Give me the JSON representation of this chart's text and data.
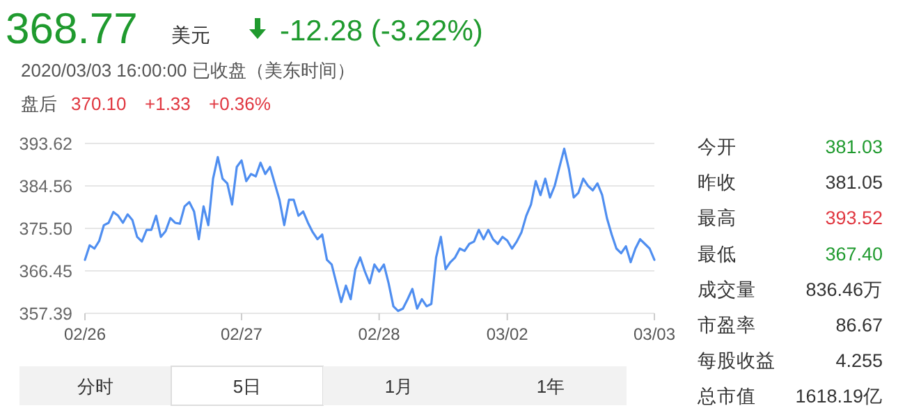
{
  "chart_data": [
    {
      "type": "line",
      "color": "#4f8ef0",
      "marker": "none",
      "line_style": "solid",
      "grid": "y",
      "categories": [
        "02/26",
        null,
        null,
        null,
        null,
        null,
        null,
        null,
        null,
        null,
        null,
        null,
        null,
        null,
        null,
        null,
        null,
        null,
        null,
        null,
        null,
        null,
        null,
        null,
        null,
        null,
        null,
        null,
        null,
        null,
        null,
        null,
        null,
        "02/27",
        null,
        null,
        null,
        null,
        null,
        null,
        null,
        null,
        null,
        null,
        null,
        null,
        null,
        null,
        null,
        null,
        null,
        null,
        null,
        null,
        null,
        null,
        null,
        null,
        null,
        null,
        null,
        null,
        "02/28",
        null,
        null,
        null,
        null,
        null,
        null,
        null,
        null,
        null,
        null,
        null,
        null,
        null,
        null,
        null,
        null,
        null,
        null,
        null,
        null,
        null,
        null,
        null,
        null,
        null,
        null,
        "03/02",
        null,
        null,
        null,
        null,
        null,
        null,
        null,
        null,
        null,
        null,
        null,
        null,
        null,
        null,
        null,
        null,
        null,
        null,
        null,
        null,
        null,
        null,
        null,
        null,
        null,
        null,
        null,
        null,
        null,
        null,
        "03/03"
      ],
      "values": [
        368.8,
        371.9,
        371.2,
        372.8,
        376.2,
        376.7,
        379.0,
        378.2,
        376.7,
        378.5,
        377.3,
        373.7,
        372.7,
        375.2,
        375.2,
        378.2,
        373.7,
        374.9,
        377.7,
        376.7,
        376.5,
        380.2,
        381.1,
        379.1,
        373.2,
        380.2,
        376.2,
        386.1,
        390.7,
        386.1,
        385.1,
        380.6,
        388.6,
        390.0,
        385.6,
        387.1,
        386.6,
        389.5,
        387.1,
        388.6,
        385.1,
        381.6,
        376.2,
        381.6,
        381.6,
        378.2,
        379.1,
        376.7,
        374.7,
        373.2,
        374.2,
        368.8,
        367.8,
        363.8,
        359.8,
        363.3,
        360.4,
        366.8,
        369.3,
        366.3,
        363.8,
        367.8,
        366.3,
        367.8,
        363.8,
        358.9,
        357.9,
        358.4,
        360.4,
        362.6,
        358.4,
        360.4,
        358.9,
        359.4,
        369.3,
        373.7,
        366.8,
        368.3,
        369.3,
        371.2,
        370.7,
        372.2,
        372.7,
        375.2,
        373.2,
        375.2,
        373.2,
        372.2,
        373.7,
        372.9,
        371.2,
        372.7,
        374.7,
        378.2,
        380.6,
        385.6,
        382.6,
        386.1,
        382.1,
        384.6,
        388.6,
        392.5,
        388.1,
        382.1,
        383.1,
        386.1,
        384.6,
        383.6,
        385.1,
        382.6,
        377.7,
        374.2,
        371.2,
        370.2,
        371.7,
        368.3,
        371.2,
        373.2,
        372.2,
        371.2,
        368.8
      ],
      "ylim": [
        357.39,
        393.62
      ],
      "yticks": [
        357.39,
        366.45,
        {
          "value": 375.5,
          "label": "375.50"
        },
        384.56,
        393.62
      ]
    },
    {
      "type": "other",
      "annotations": [
        "368.77",
        "美元",
        "-12.28 (-3.22%)",
        "2020/03/03 16:00:00 已收盘（美东时间）",
        "盘后",
        "370.10",
        "+1.33",
        "+0.36%",
        "今开",
        "381.03",
        "昨收",
        "381.05",
        "最高",
        "393.52",
        "最低",
        "367.40",
        "成交量",
        "836.46万",
        "市盈率",
        "86.67",
        "每股收益",
        "4.255",
        "总市值",
        "1618.19亿",
        "分时",
        "5日",
        "1月",
        "1年"
      ]
    }
  ]
}
